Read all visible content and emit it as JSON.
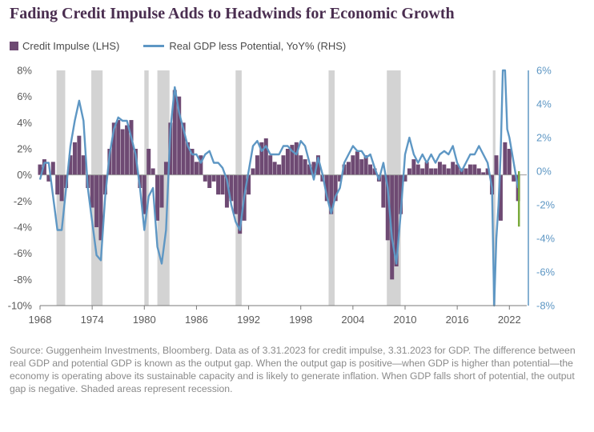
{
  "title": "Fading Credit Impulse Adds to Headwinds for Economic Growth",
  "legend": {
    "bar_label": "Credit Impulse (LHS)",
    "line_label": "Real GDP less Potential, YoY% (RHS)"
  },
  "source": "Source: Guggenheim Investments, Bloomberg. Data as of 3.31.2023 for credit impulse, 3.31.2023 for GDP. The difference between real GDP and potential GDP is known as the output gap. When the output gap is positive—when GDP is higher than potential—the economy is operating above its sustainable capacity and is likely to generate inflation. When GDP falls short of potential, the output gap is negative. Shaded areas represent recession.",
  "chart_data": {
    "type": "bar+line",
    "x_ticks": [
      1968,
      1974,
      1980,
      1986,
      1992,
      1998,
      2004,
      2010,
      2016,
      2022
    ],
    "x_tick_labels": [
      "1968",
      "1974",
      "1980",
      "1986",
      "1992",
      "1998",
      "2004",
      "2010",
      "2016",
      "2022"
    ],
    "xlim": [
      1968,
      2024
    ],
    "y_left": {
      "lim": [
        -10,
        8
      ],
      "ticks": [
        -10,
        -8,
        -6,
        -4,
        -2,
        0,
        2,
        4,
        6,
        8
      ],
      "tick_labels": [
        "-10%",
        "-8%",
        "-6%",
        "-4%",
        "-2%",
        "0%",
        "2%",
        "4%",
        "6%",
        "8%"
      ]
    },
    "y_right": {
      "lim": [
        -8,
        6
      ],
      "ticks": [
        -8,
        -6,
        -4,
        -2,
        0,
        2,
        4,
        6
      ],
      "tick_labels": [
        "-8%",
        "-6%",
        "-4%",
        "-2%",
        "0%",
        "2%",
        "4%",
        "6%"
      ]
    },
    "recessions": [
      [
        1969.9,
        1970.9
      ],
      [
        1973.9,
        1975.2
      ],
      [
        1980.0,
        1980.5
      ],
      [
        1981.5,
        1982.9
      ],
      [
        1990.5,
        1991.2
      ],
      [
        2001.2,
        2001.9
      ],
      [
        2007.9,
        2009.5
      ],
      [
        2020.1,
        2020.4
      ]
    ],
    "colors": {
      "bars": "#6e4a73",
      "line": "#5e97c4",
      "recession": "#d3d3d3",
      "latest_marker": "#7aaa3c"
    },
    "series": [
      {
        "name": "Credit Impulse (LHS)",
        "type": "bar",
        "axis": "left",
        "x": [
          1968.0,
          1968.5,
          1969.0,
          1969.5,
          1970.0,
          1970.5,
          1971.0,
          1971.5,
          1972.0,
          1972.5,
          1973.0,
          1973.5,
          1974.0,
          1974.5,
          1975.0,
          1975.5,
          1976.0,
          1976.5,
          1977.0,
          1977.5,
          1978.0,
          1978.5,
          1979.0,
          1979.5,
          1980.0,
          1980.5,
          1981.0,
          1981.5,
          1982.0,
          1982.5,
          1983.0,
          1983.5,
          1984.0,
          1984.5,
          1985.0,
          1985.5,
          1986.0,
          1986.5,
          1987.0,
          1987.5,
          1988.0,
          1988.5,
          1989.0,
          1989.5,
          1990.0,
          1990.5,
          1991.0,
          1991.5,
          1992.0,
          1992.5,
          1993.0,
          1993.5,
          1994.0,
          1994.5,
          1995.0,
          1995.5,
          1996.0,
          1996.5,
          1997.0,
          1997.5,
          1998.0,
          1998.5,
          1999.0,
          1999.5,
          2000.0,
          2000.5,
          2001.0,
          2001.5,
          2002.0,
          2002.5,
          2003.0,
          2003.5,
          2004.0,
          2004.5,
          2005.0,
          2005.5,
          2006.0,
          2006.5,
          2007.0,
          2007.5,
          2008.0,
          2008.5,
          2009.0,
          2009.5,
          2010.0,
          2010.5,
          2011.0,
          2011.5,
          2012.0,
          2012.5,
          2013.0,
          2013.5,
          2014.0,
          2014.5,
          2015.0,
          2015.5,
          2016.0,
          2016.5,
          2017.0,
          2017.5,
          2018.0,
          2018.5,
          2019.0,
          2019.5,
          2020.0,
          2020.5,
          2021.0,
          2021.5,
          2022.0,
          2022.5,
          2023.0
        ],
        "values": [
          0.8,
          1.2,
          -0.5,
          1.0,
          -1.5,
          -2.0,
          -1.0,
          1.5,
          2.5,
          3.0,
          1.5,
          -1.0,
          -2.5,
          -4.0,
          -5.0,
          -1.5,
          2.0,
          4.0,
          4.2,
          3.5,
          3.8,
          4.2,
          2.0,
          -1.0,
          -3.0,
          2.0,
          0.5,
          -3.5,
          -2.5,
          1.0,
          4.0,
          6.5,
          6.0,
          4.0,
          2.5,
          2.0,
          1.0,
          1.5,
          -0.5,
          -1.0,
          -0.5,
          -1.5,
          -1.5,
          -2.5,
          -2.0,
          -3.0,
          -4.5,
          -3.5,
          -1.5,
          0.5,
          1.5,
          2.5,
          2.8,
          1.5,
          1.0,
          0.8,
          1.5,
          2.0,
          2.3,
          2.5,
          1.5,
          1.2,
          0.8,
          1.0,
          1.5,
          -0.5,
          -2.0,
          -3.0,
          -2.0,
          -0.5,
          0.8,
          1.0,
          1.5,
          1.8,
          1.2,
          1.5,
          0.8,
          0.5,
          -0.5,
          -2.5,
          -5.0,
          -8.0,
          -7.0,
          -3.0,
          -0.5,
          0.5,
          1.2,
          0.8,
          0.5,
          1.0,
          0.5,
          0.5,
          1.0,
          0.8,
          0.5,
          1.0,
          0.8,
          0.5,
          0.5,
          0.8,
          0.8,
          0.5,
          0.2,
          0.5,
          -1.5,
          1.5,
          -3.5,
          2.5,
          2.0,
          -0.5,
          -2.0
        ]
      },
      {
        "name": "Real GDP less Potential, YoY% (RHS)",
        "type": "line",
        "axis": "right",
        "x": [
          1968.0,
          1968.5,
          1969.0,
          1969.5,
          1970.0,
          1970.5,
          1971.0,
          1971.5,
          1972.0,
          1972.5,
          1973.0,
          1973.5,
          1974.0,
          1974.5,
          1975.0,
          1975.5,
          1976.0,
          1976.5,
          1977.0,
          1977.5,
          1978.0,
          1978.5,
          1979.0,
          1979.5,
          1980.0,
          1980.5,
          1981.0,
          1981.5,
          1982.0,
          1982.5,
          1983.0,
          1983.5,
          1984.0,
          1984.5,
          1985.0,
          1985.5,
          1986.0,
          1986.5,
          1987.0,
          1987.5,
          1988.0,
          1988.5,
          1989.0,
          1989.5,
          1990.0,
          1990.5,
          1991.0,
          1991.5,
          1992.0,
          1992.5,
          1993.0,
          1993.5,
          1994.0,
          1994.5,
          1995.0,
          1995.5,
          1996.0,
          1996.5,
          1997.0,
          1997.5,
          1998.0,
          1998.5,
          1999.0,
          1999.5,
          2000.0,
          2000.5,
          2001.0,
          2001.5,
          2002.0,
          2002.5,
          2003.0,
          2003.5,
          2004.0,
          2004.5,
          2005.0,
          2005.5,
          2006.0,
          2006.5,
          2007.0,
          2007.5,
          2008.0,
          2008.5,
          2009.0,
          2009.5,
          2010.0,
          2010.5,
          2011.0,
          2011.5,
          2012.0,
          2012.5,
          2013.0,
          2013.5,
          2014.0,
          2014.5,
          2015.0,
          2015.5,
          2016.0,
          2016.5,
          2017.0,
          2017.5,
          2018.0,
          2018.5,
          2019.0,
          2019.5,
          2020.0,
          2020.25,
          2020.5,
          2020.75,
          2021.0,
          2021.25,
          2021.5,
          2021.75,
          2022.0,
          2022.5,
          2023.0
        ],
        "values": [
          -0.5,
          0.5,
          0.5,
          -1.5,
          -3.5,
          -3.5,
          -1.0,
          1.5,
          3.0,
          4.2,
          3.0,
          -1.0,
          -3.0,
          -5.0,
          -5.3,
          -1.5,
          1.0,
          2.5,
          3.2,
          3.0,
          3.0,
          2.0,
          1.0,
          -1.0,
          -3.5,
          -1.5,
          -1.0,
          -4.5,
          -5.5,
          -3.5,
          2.5,
          5.0,
          3.5,
          2.5,
          1.5,
          1.0,
          1.0,
          0.5,
          1.0,
          1.2,
          0.5,
          0.5,
          0.2,
          -0.5,
          -2.0,
          -3.0,
          -3.5,
          -1.5,
          0.0,
          1.5,
          1.8,
          1.2,
          1.5,
          1.0,
          1.0,
          1.0,
          1.5,
          1.5,
          1.2,
          1.0,
          1.8,
          1.5,
          0.5,
          -0.5,
          0.8,
          -0.2,
          -1.5,
          -2.5,
          -1.5,
          -1.0,
          0.5,
          1.0,
          1.5,
          1.2,
          1.2,
          0.8,
          1.0,
          0.2,
          -0.5,
          0.5,
          -1.0,
          -4.0,
          -5.5,
          -2.5,
          1.0,
          2.0,
          1.0,
          0.5,
          1.0,
          0.5,
          1.0,
          0.5,
          1.0,
          1.2,
          1.0,
          1.5,
          0.5,
          0.0,
          0.5,
          1.0,
          1.0,
          1.5,
          1.0,
          0.5,
          -1.0,
          -8.0,
          -4.0,
          -2.0,
          1.0,
          6.0,
          6.0,
          2.5,
          2.0,
          0.5,
          -1.0
        ]
      }
    ],
    "latest_marker": {
      "x": 2023.1,
      "from_rhs": 0,
      "to_rhs": -3.3
    }
  }
}
